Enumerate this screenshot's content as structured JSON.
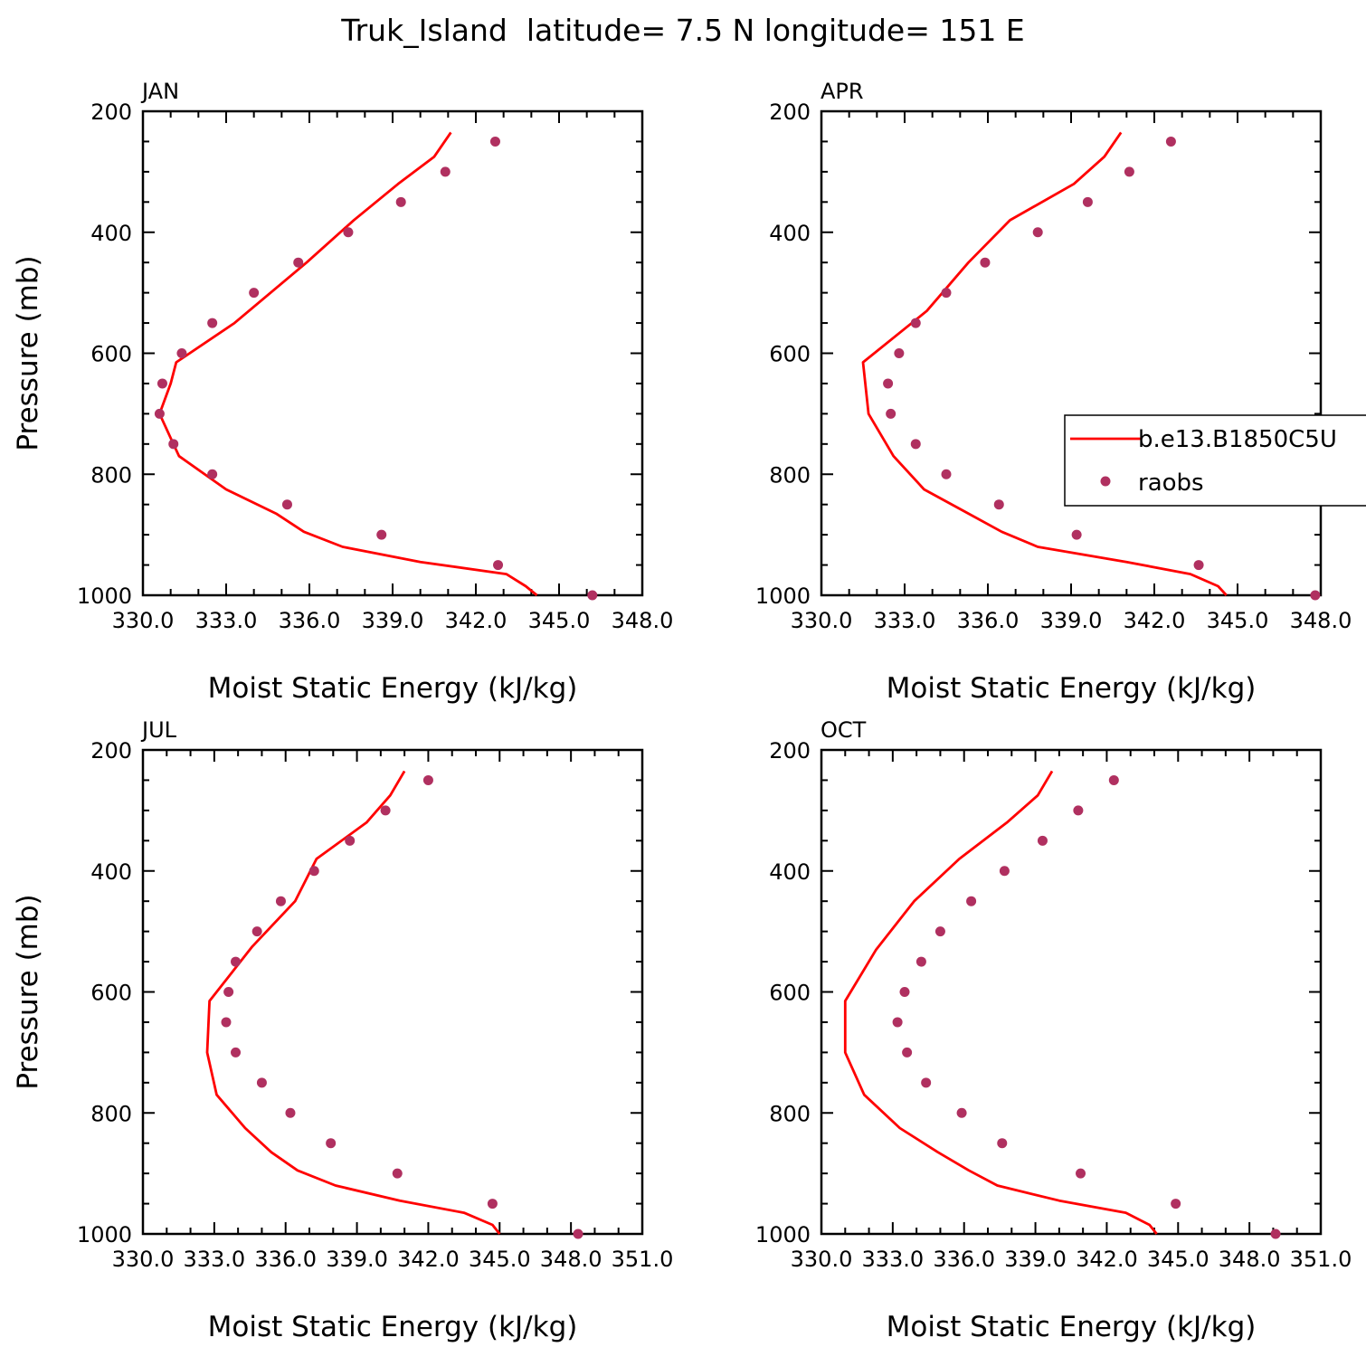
{
  "figure_title": "Truk_Island  latitude= 7.5 N longitude= 151 E",
  "colors": {
    "model_line": "#ff0000",
    "obs_marker": "#b03060",
    "axes": "#000000"
  },
  "legend": {
    "model_label": "b.e13.B1850C5U",
    "obs_label": "raobs"
  },
  "chart_data": [
    {
      "type": "line",
      "panel": "JAN",
      "xlabel": "Moist Static Energy (kJ/kg)",
      "ylabel": "Pressure (mb)",
      "xlim": [
        330.0,
        348.0
      ],
      "ylim": [
        1000,
        200
      ],
      "x_tick_labels": [
        "330.0",
        "333.0",
        "336.0",
        "339.0",
        "342.0",
        "345.0",
        "348.0"
      ],
      "y_tick_labels": [
        "200",
        "400",
        "600",
        "800",
        "1000"
      ],
      "legend_visible": false,
      "series": [
        {
          "name": "b.e13.B1850C5U",
          "kind": "line",
          "points": [
            [
              344.2,
              1000
            ],
            [
              343.8,
              985
            ],
            [
              343.1,
              965
            ],
            [
              340.0,
              945
            ],
            [
              337.2,
              920
            ],
            [
              335.8,
              895
            ],
            [
              334.8,
              865
            ],
            [
              333.0,
              825
            ],
            [
              331.3,
              770
            ],
            [
              331.1,
              750
            ],
            [
              330.6,
              700
            ],
            [
              331.0,
              650
            ],
            [
              331.2,
              615
            ],
            [
              333.3,
              550
            ],
            [
              335.9,
              450
            ],
            [
              337.6,
              380
            ],
            [
              339.2,
              320
            ],
            [
              340.5,
              275
            ],
            [
              341.1,
              235
            ]
          ]
        },
        {
          "name": "raobs",
          "kind": "scatter",
          "points": [
            [
              346.2,
              1000
            ],
            [
              342.8,
              950
            ],
            [
              338.6,
              900
            ],
            [
              335.2,
              850
            ],
            [
              332.5,
              800
            ],
            [
              331.1,
              750
            ],
            [
              330.6,
              700
            ],
            [
              330.7,
              650
            ],
            [
              331.4,
              600
            ],
            [
              332.5,
              550
            ],
            [
              334.0,
              500
            ],
            [
              335.6,
              450
            ],
            [
              337.4,
              400
            ],
            [
              339.3,
              350
            ],
            [
              340.9,
              300
            ],
            [
              342.7,
              250
            ]
          ]
        }
      ]
    },
    {
      "type": "line",
      "panel": "APR",
      "xlabel": "Moist Static Energy (kJ/kg)",
      "ylabel": "",
      "xlim": [
        330.0,
        348.0
      ],
      "ylim": [
        1000,
        200
      ],
      "x_tick_labels": [
        "330.0",
        "333.0",
        "336.0",
        "339.0",
        "342.0",
        "345.0",
        "348.0"
      ],
      "y_tick_labels": [
        "200",
        "400",
        "600",
        "800",
        "1000"
      ],
      "legend_visible": true,
      "series": [
        {
          "name": "b.e13.B1850C5U",
          "kind": "line",
          "points": [
            [
              344.6,
              1000
            ],
            [
              344.3,
              985
            ],
            [
              343.3,
              965
            ],
            [
              341.0,
              945
            ],
            [
              337.8,
              920
            ],
            [
              336.5,
              895
            ],
            [
              335.1,
              860
            ],
            [
              333.7,
              825
            ],
            [
              332.6,
              770
            ],
            [
              331.7,
              700
            ],
            [
              331.5,
              615
            ],
            [
              333.8,
              530
            ],
            [
              335.3,
              450
            ],
            [
              336.8,
              380
            ],
            [
              339.1,
              320
            ],
            [
              340.2,
              275
            ],
            [
              340.8,
              235
            ]
          ]
        },
        {
          "name": "raobs",
          "kind": "scatter",
          "points": [
            [
              347.8,
              1000
            ],
            [
              343.6,
              950
            ],
            [
              339.2,
              900
            ],
            [
              336.4,
              850
            ],
            [
              334.5,
              800
            ],
            [
              333.4,
              750
            ],
            [
              332.5,
              700
            ],
            [
              332.4,
              650
            ],
            [
              332.8,
              600
            ],
            [
              333.4,
              550
            ],
            [
              334.5,
              500
            ],
            [
              335.9,
              450
            ],
            [
              337.8,
              400
            ],
            [
              339.6,
              350
            ],
            [
              341.1,
              300
            ],
            [
              342.6,
              250
            ]
          ]
        }
      ]
    },
    {
      "type": "line",
      "panel": "JUL",
      "xlabel": "Moist Static Energy (kJ/kg)",
      "ylabel": "Pressure (mb)",
      "xlim": [
        330.0,
        351.0
      ],
      "ylim": [
        1000,
        200
      ],
      "x_tick_labels": [
        "330.0",
        "333.0",
        "336.0",
        "339.0",
        "342.0",
        "345.0",
        "348.0",
        "351.0"
      ],
      "y_tick_labels": [
        "200",
        "400",
        "600",
        "800",
        "1000"
      ],
      "legend_visible": false,
      "series": [
        {
          "name": "b.e13.B1850C5U",
          "kind": "line",
          "points": [
            [
              345.0,
              1000
            ],
            [
              344.7,
              985
            ],
            [
              343.5,
              965
            ],
            [
              340.8,
              945
            ],
            [
              338.1,
              920
            ],
            [
              336.5,
              895
            ],
            [
              335.4,
              865
            ],
            [
              334.3,
              825
            ],
            [
              333.1,
              770
            ],
            [
              332.7,
              700
            ],
            [
              332.8,
              615
            ],
            [
              334.6,
              525
            ],
            [
              336.4,
              450
            ],
            [
              337.3,
              380
            ],
            [
              339.4,
              320
            ],
            [
              340.4,
              275
            ],
            [
              341.0,
              235
            ]
          ]
        },
        {
          "name": "raobs",
          "kind": "scatter",
          "points": [
            [
              348.3,
              1000
            ],
            [
              344.7,
              950
            ],
            [
              340.7,
              900
            ],
            [
              337.9,
              850
            ],
            [
              336.2,
              800
            ],
            [
              335.0,
              750
            ],
            [
              333.9,
              700
            ],
            [
              333.5,
              650
            ],
            [
              333.6,
              600
            ],
            [
              333.9,
              550
            ],
            [
              334.8,
              500
            ],
            [
              335.8,
              450
            ],
            [
              337.2,
              400
            ],
            [
              338.7,
              350
            ],
            [
              340.2,
              300
            ],
            [
              342.0,
              250
            ]
          ]
        }
      ]
    },
    {
      "type": "line",
      "panel": "OCT",
      "xlabel": "Moist Static Energy (kJ/kg)",
      "ylabel": "",
      "xlim": [
        330.0,
        351.0
      ],
      "ylim": [
        1000,
        200
      ],
      "x_tick_labels": [
        "330.0",
        "333.0",
        "336.0",
        "339.0",
        "342.0",
        "345.0",
        "348.0",
        "351.0"
      ],
      "y_tick_labels": [
        "200",
        "400",
        "600",
        "800",
        "1000"
      ],
      "legend_visible": false,
      "series": [
        {
          "name": "b.e13.B1850C5U",
          "kind": "line",
          "points": [
            [
              344.1,
              1000
            ],
            [
              343.8,
              985
            ],
            [
              342.8,
              965
            ],
            [
              340.0,
              945
            ],
            [
              337.4,
              920
            ],
            [
              336.2,
              895
            ],
            [
              334.9,
              865
            ],
            [
              333.3,
              825
            ],
            [
              331.8,
              770
            ],
            [
              331.0,
              700
            ],
            [
              331.0,
              615
            ],
            [
              332.3,
              530
            ],
            [
              333.9,
              450
            ],
            [
              335.8,
              380
            ],
            [
              337.8,
              320
            ],
            [
              339.1,
              275
            ],
            [
              339.7,
              235
            ]
          ]
        },
        {
          "name": "raobs",
          "kind": "scatter",
          "points": [
            [
              349.1,
              1000
            ],
            [
              344.9,
              950
            ],
            [
              340.9,
              900
            ],
            [
              337.6,
              850
            ],
            [
              335.9,
              800
            ],
            [
              334.4,
              750
            ],
            [
              333.6,
              700
            ],
            [
              333.2,
              650
            ],
            [
              333.5,
              600
            ],
            [
              334.2,
              550
            ],
            [
              335.0,
              500
            ],
            [
              336.3,
              450
            ],
            [
              337.7,
              400
            ],
            [
              339.3,
              350
            ],
            [
              340.8,
              300
            ],
            [
              342.3,
              250
            ]
          ]
        }
      ]
    }
  ]
}
